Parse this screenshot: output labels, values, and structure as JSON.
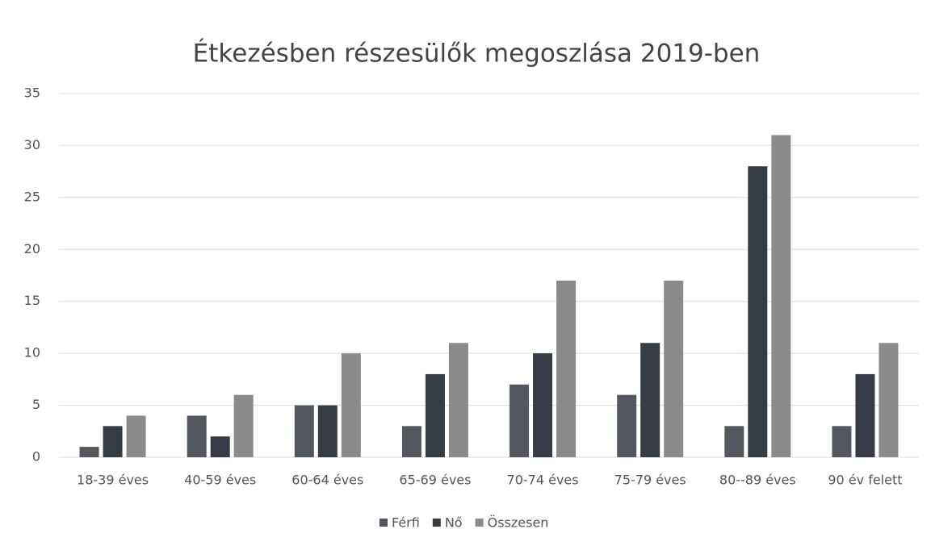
{
  "chart_data": {
    "type": "bar",
    "title": "Étkezésben részesülők megoszlása 2019-ben",
    "categories": [
      "18-39 éves",
      "40-59 éves",
      "60-64 éves",
      "65-69 éves",
      "70-74 éves",
      "75-79 éves",
      "80--89 éves",
      "90 év felett"
    ],
    "series": [
      {
        "name": "Férfi",
        "color": "#53585e",
        "values": [
          1,
          4,
          5,
          3,
          7,
          6,
          3,
          3
        ]
      },
      {
        "name": "Nő",
        "color": "#363c44",
        "values": [
          3,
          2,
          5,
          8,
          10,
          11,
          28,
          8
        ]
      },
      {
        "name": "Összesen",
        "color": "#8b8b8b",
        "values": [
          4,
          6,
          10,
          11,
          17,
          17,
          31,
          11
        ]
      }
    ],
    "ylim": [
      0,
      35
    ],
    "yticks": [
      0,
      5,
      10,
      15,
      20,
      25,
      30,
      35
    ],
    "grid": true,
    "legend": "bottom"
  }
}
